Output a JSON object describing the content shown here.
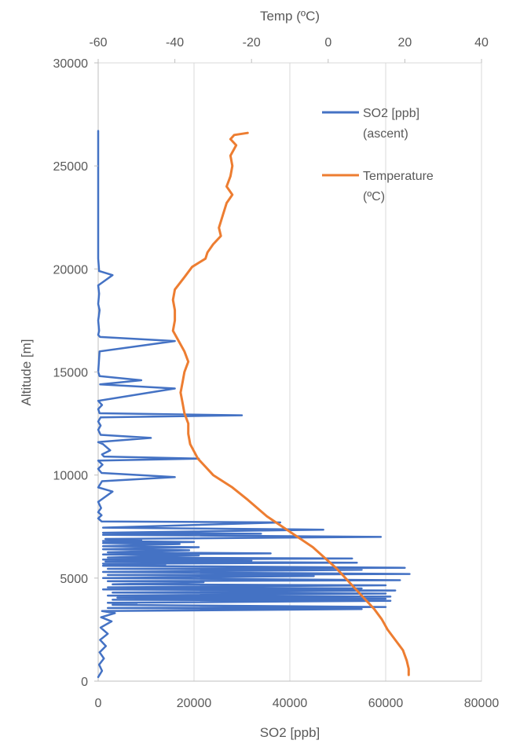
{
  "chart_data": {
    "type": "line",
    "ylabel": "Altitude [m]",
    "ylim": [
      0,
      30000
    ],
    "y_ticks": [
      "0",
      "5000",
      "10000",
      "15000",
      "20000",
      "25000",
      "30000"
    ],
    "x_bottom_label": "SO2 [ppb]",
    "x_bottom_lim": [
      0,
      80000
    ],
    "x_bottom_ticks": [
      "0",
      "20000",
      "40000",
      "60000",
      "80000"
    ],
    "x_top_label": "Temp (ºC)",
    "x_top_lim": [
      -60,
      40
    ],
    "x_top_ticks": [
      "-60",
      "-40",
      "-20",
      "0",
      "20",
      "40"
    ],
    "grid": "vertical",
    "legend_position": "top-right",
    "series": [
      {
        "name": "SO2 [ppb] (ascent)",
        "axis": "bottom",
        "color": "#4472C4",
        "points": [
          [
            0,
            200
          ],
          [
            800,
            500
          ],
          [
            200,
            800
          ],
          [
            1200,
            1100
          ],
          [
            300,
            1400
          ],
          [
            1600,
            1700
          ],
          [
            400,
            2000
          ],
          [
            2000,
            2300
          ],
          [
            500,
            2600
          ],
          [
            2800,
            2900
          ],
          [
            600,
            3100
          ],
          [
            3500,
            3300
          ],
          [
            800,
            3400
          ],
          [
            55000,
            3500
          ],
          [
            2000,
            3550
          ],
          [
            60000,
            3600
          ],
          [
            3000,
            3700
          ],
          [
            8000,
            3750
          ],
          [
            2000,
            3800
          ],
          [
            61000,
            3900
          ],
          [
            3000,
            3950
          ],
          [
            60000,
            4000
          ],
          [
            4000,
            4050
          ],
          [
            61000,
            4100
          ],
          [
            2000,
            4150
          ],
          [
            60000,
            4250
          ],
          [
            3000,
            4300
          ],
          [
            62000,
            4400
          ],
          [
            1000,
            4450
          ],
          [
            55000,
            4500
          ],
          [
            2000,
            4550
          ],
          [
            60000,
            4650
          ],
          [
            3000,
            4700
          ],
          [
            22000,
            4800
          ],
          [
            2000,
            4850
          ],
          [
            63000,
            4900
          ],
          [
            1000,
            5000
          ],
          [
            45000,
            5100
          ],
          [
            2000,
            5150
          ],
          [
            65000,
            5200
          ],
          [
            1000,
            5300
          ],
          [
            55000,
            5400
          ],
          [
            2000,
            5450
          ],
          [
            64000,
            5500
          ],
          [
            1000,
            5600
          ],
          [
            14000,
            5650
          ],
          [
            1000,
            5700
          ],
          [
            54000,
            5750
          ],
          [
            1500,
            5800
          ],
          [
            32000,
            5850
          ],
          [
            1000,
            5900
          ],
          [
            53000,
            5950
          ],
          [
            2000,
            6000
          ],
          [
            21000,
            6100
          ],
          [
            1000,
            6150
          ],
          [
            36000,
            6200
          ],
          [
            2000,
            6250
          ],
          [
            19000,
            6350
          ],
          [
            1000,
            6400
          ],
          [
            21000,
            6500
          ],
          [
            1000,
            6550
          ],
          [
            17000,
            6650
          ],
          [
            1000,
            6700
          ],
          [
            20000,
            6750
          ],
          [
            1000,
            6800
          ],
          [
            9000,
            6850
          ],
          [
            1500,
            6900
          ],
          [
            59000,
            7000
          ],
          [
            1000,
            7100
          ],
          [
            34000,
            7150
          ],
          [
            1000,
            7200
          ],
          [
            47000,
            7350
          ],
          [
            1000,
            7450
          ],
          [
            38000,
            7700
          ],
          [
            700,
            7750
          ],
          [
            0,
            7900
          ],
          [
            700,
            8050
          ],
          [
            0,
            8200
          ],
          [
            600,
            8400
          ],
          [
            0,
            8700
          ],
          [
            3000,
            9200
          ],
          [
            0,
            9400
          ],
          [
            800,
            9700
          ],
          [
            16000,
            9900
          ],
          [
            700,
            10100
          ],
          [
            0,
            10300
          ],
          [
            900,
            10500
          ],
          [
            0,
            10700
          ],
          [
            21000,
            10800
          ],
          [
            1200,
            10900
          ],
          [
            800,
            11000
          ],
          [
            2500,
            11200
          ],
          [
            1000,
            11500
          ],
          [
            0,
            11600
          ],
          [
            11000,
            11800
          ],
          [
            500,
            11950
          ],
          [
            0,
            12200
          ],
          [
            500,
            12400
          ],
          [
            0,
            12600
          ],
          [
            500,
            12800
          ],
          [
            30000,
            12900
          ],
          [
            300,
            13000
          ],
          [
            0,
            13200
          ],
          [
            800,
            13400
          ],
          [
            0,
            13600
          ],
          [
            16000,
            14200
          ],
          [
            400,
            14400
          ],
          [
            9000,
            14600
          ],
          [
            300,
            14800
          ],
          [
            0,
            15000
          ],
          [
            300,
            16000
          ],
          [
            16000,
            16500
          ],
          [
            400,
            16700
          ],
          [
            0,
            16800
          ],
          [
            200,
            17000
          ],
          [
            0,
            17500
          ],
          [
            300,
            18000
          ],
          [
            0,
            18300
          ],
          [
            200,
            18800
          ],
          [
            0,
            19200
          ],
          [
            3000,
            19700
          ],
          [
            200,
            19900
          ],
          [
            0,
            20500
          ],
          [
            0,
            26700
          ]
        ]
      },
      {
        "name": "Temperature (ºC)",
        "axis": "top",
        "color": "#ED7D31",
        "points": [
          [
            21,
            300
          ],
          [
            21,
            600
          ],
          [
            20.5,
            1000
          ],
          [
            19.5,
            1500
          ],
          [
            17.5,
            2000
          ],
          [
            15.5,
            2500
          ],
          [
            14,
            3000
          ],
          [
            12,
            3500
          ],
          [
            9.5,
            4000
          ],
          [
            7,
            4500
          ],
          [
            4.5,
            5000
          ],
          [
            2,
            5500
          ],
          [
            -1,
            6000
          ],
          [
            -4,
            6500
          ],
          [
            -8,
            7000
          ],
          [
            -12,
            7500
          ],
          [
            -16,
            8000
          ],
          [
            -21,
            8800
          ],
          [
            -25,
            9400
          ],
          [
            -30,
            10000
          ],
          [
            -34,
            10800
          ],
          [
            -36,
            11500
          ],
          [
            -36.5,
            12000
          ],
          [
            -36.5,
            12500
          ],
          [
            -37.5,
            13000
          ],
          [
            -38,
            13500
          ],
          [
            -38.5,
            14000
          ],
          [
            -38,
            14500
          ],
          [
            -37.5,
            15000
          ],
          [
            -36.5,
            15500
          ],
          [
            -37.5,
            16000
          ],
          [
            -39,
            16500
          ],
          [
            -40.5,
            17000
          ],
          [
            -40,
            17500
          ],
          [
            -40,
            18000
          ],
          [
            -40.5,
            18500
          ],
          [
            -40,
            19000
          ],
          [
            -37.5,
            19600
          ],
          [
            -35.5,
            20100
          ],
          [
            -32,
            20500
          ],
          [
            -31.5,
            20800
          ],
          [
            -30,
            21200
          ],
          [
            -28,
            21600
          ],
          [
            -28.5,
            22000
          ],
          [
            -27.5,
            22600
          ],
          [
            -26.5,
            23200
          ],
          [
            -25,
            23600
          ],
          [
            -26.5,
            24000
          ],
          [
            -25.5,
            24500
          ],
          [
            -25,
            25000
          ],
          [
            -25.5,
            25500
          ],
          [
            -24,
            26000
          ],
          [
            -25.5,
            26300
          ],
          [
            -24.5,
            26500
          ],
          [
            -21,
            26600
          ]
        ]
      }
    ]
  }
}
